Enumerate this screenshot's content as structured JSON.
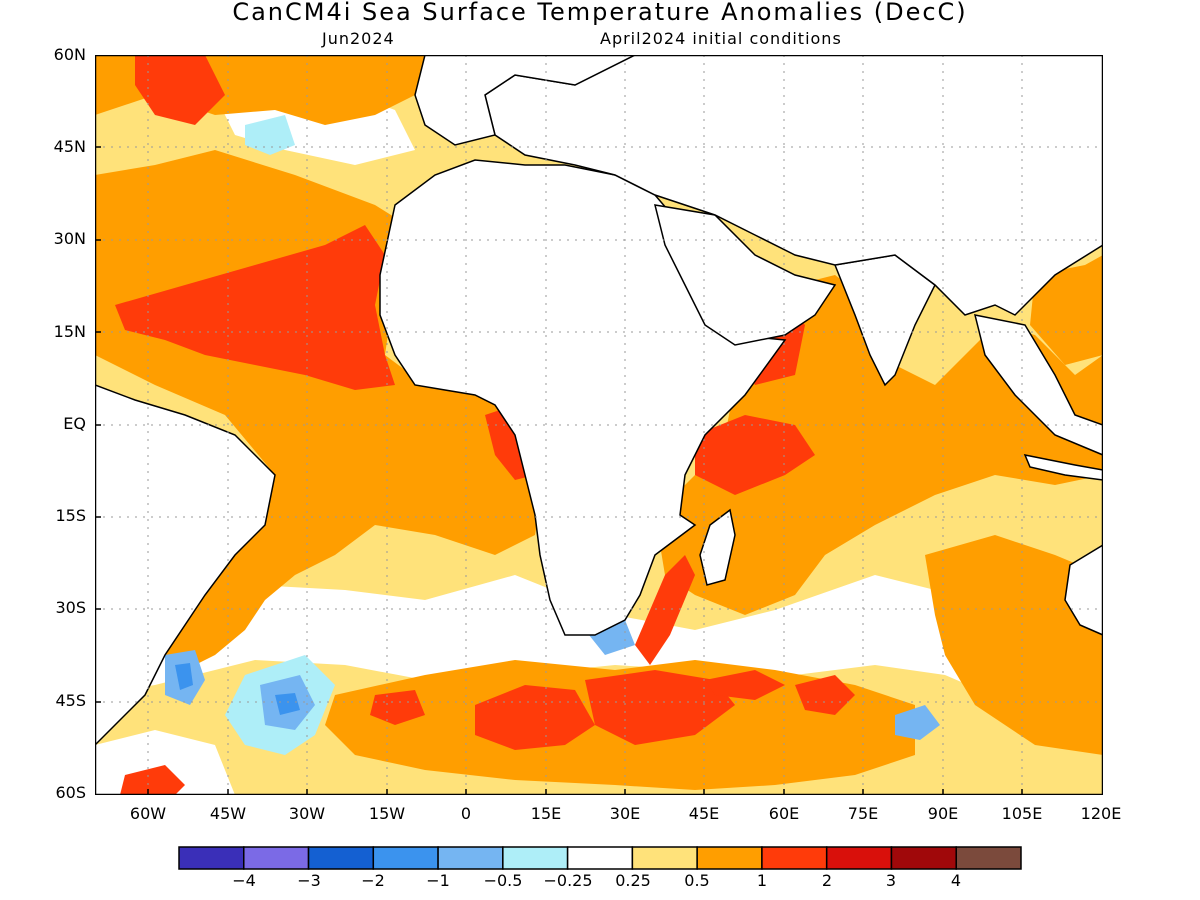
{
  "title": "CanCM4i Sea Surface Temperature Anomalies (DecC)",
  "valid_month": "Jun2024",
  "init_label": "April2024 initial conditions",
  "lat_labels": [
    "60N",
    "45N",
    "30N",
    "15N",
    "EQ",
    "15S",
    "30S",
    "45S",
    "60S"
  ],
  "lon_labels": [
    "60W",
    "45W",
    "30W",
    "15W",
    "0",
    "15E",
    "30E",
    "45E",
    "60E",
    "75E",
    "90E",
    "105E",
    "120E"
  ],
  "colorbar": {
    "colors": [
      "#3a2fb8",
      "#7b6ae6",
      "#1460d2",
      "#3b93ee",
      "#75b5f2",
      "#aeeef8",
      "#ffffff",
      "#ffe27a",
      "#ff9e00",
      "#ff3b0a",
      "#d9100b",
      "#a0080a",
      "#7b4a3c"
    ],
    "labels": [
      "−4",
      "−3",
      "−2",
      "−1",
      "−0.5",
      "−0.25",
      "0.25",
      "0.5",
      "1",
      "2",
      "3",
      "4"
    ]
  },
  "legend_colors": {
    "ocean_warm_weak": "#ffe27a",
    "ocean_warm": "#ff9e00",
    "ocean_hot": "#ff3b0a",
    "ocean_cool": "#75b5f2",
    "ocean_cold": "#3b93ee",
    "land": "#ffffff",
    "coast": "#000000",
    "grid": "#9a9a9a"
  }
}
